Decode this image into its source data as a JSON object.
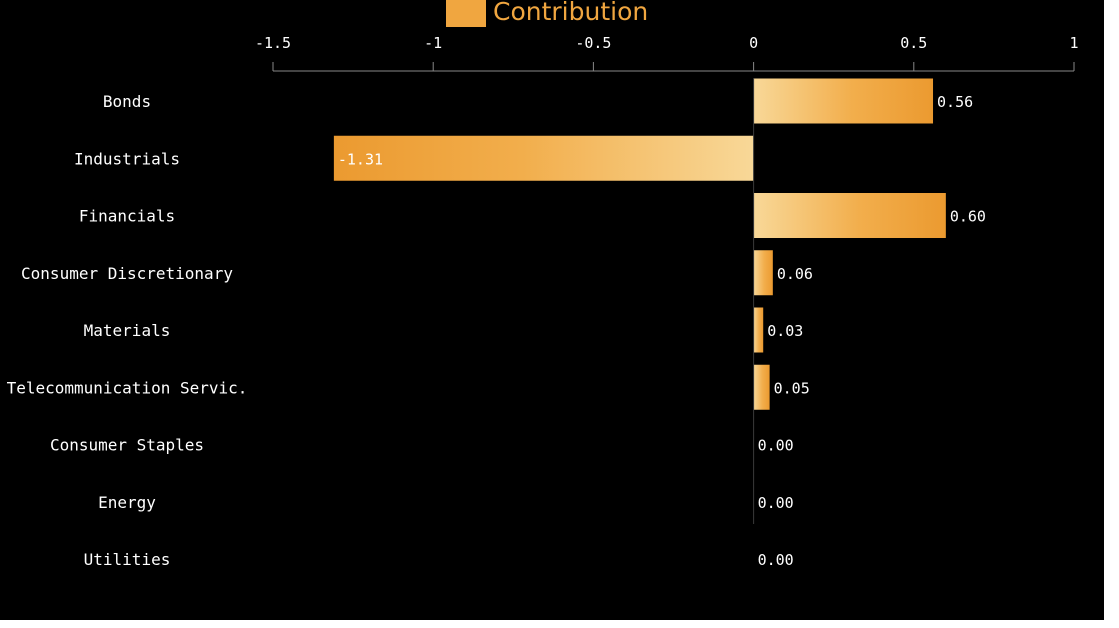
{
  "chart_data": {
    "type": "bar",
    "orientation": "horizontal",
    "legend": {
      "entries": [
        "Contribution"
      ],
      "placement": "top-center"
    },
    "categories": [
      "Bonds",
      "Industrials",
      "Financials",
      "Consumer Discretionary",
      "Materials",
      "Telecommunication Servic.",
      "Consumer Staples",
      "Energy",
      "Utilities"
    ],
    "series": [
      {
        "name": "Contribution",
        "values": [
          0.56,
          -1.31,
          0.6,
          0.06,
          0.03,
          0.05,
          0.0,
          0.0,
          0.0
        ],
        "value_labels": [
          "0.56",
          "-1.31",
          "0.60",
          "0.06",
          "0.03",
          "0.05",
          "0.00",
          "0.00",
          "0.00"
        ]
      }
    ],
    "xaxis": {
      "position": "top",
      "ticks": [
        -1.5,
        -1,
        -0.5,
        0,
        0.5,
        1
      ],
      "tick_labels": [
        "-1.5",
        "-1",
        "-0.5",
        "0",
        "0.5",
        "1"
      ]
    },
    "xlim": [
      -1.5,
      1
    ],
    "grid": false,
    "colors": {
      "background": "#000000",
      "bar": "#f0a640",
      "bar_light": "#f7cd85",
      "text": "#ffffff",
      "axis": "#888888"
    }
  }
}
